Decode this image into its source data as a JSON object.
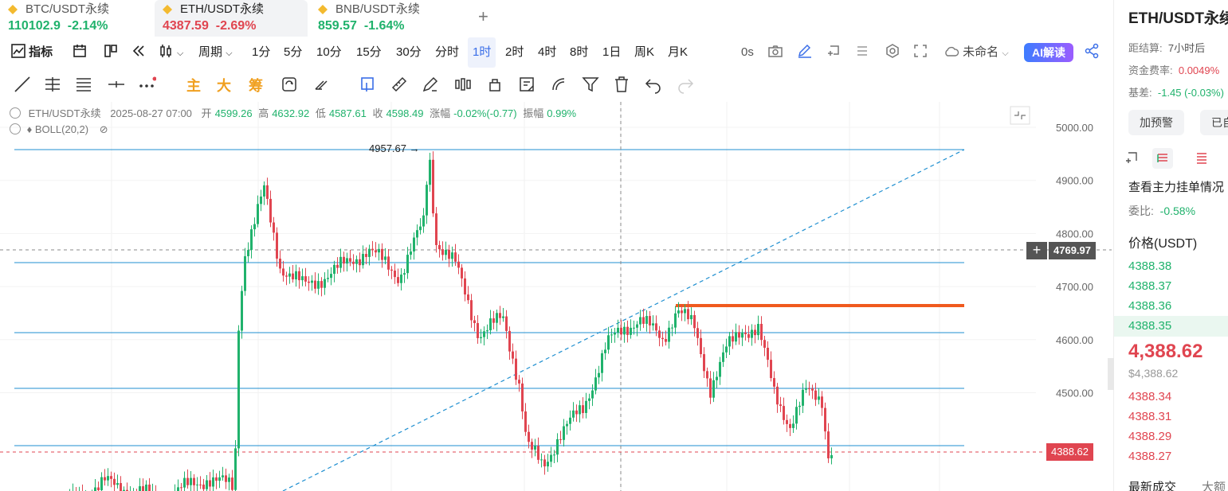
{
  "tabs": [
    {
      "pair": "BTC/USDT永续",
      "price": "110102.9",
      "change": "-2.14%",
      "dir": "up",
      "active": false
    },
    {
      "pair": "ETH/USDT永续",
      "price": "4387.59",
      "change": "-2.69%",
      "dir": "down",
      "active": true
    },
    {
      "pair": "BNB/USDT永续",
      "price": "859.57",
      "change": "-1.64%",
      "dir": "up",
      "active": false
    }
  ],
  "toolbar": {
    "indicators": "指标",
    "period": "周期",
    "intervals": [
      "1分",
      "5分",
      "10分",
      "15分",
      "30分",
      "分时",
      "1时",
      "2时",
      "4时",
      "8时",
      "1日",
      "周K",
      "月K"
    ],
    "active_interval": "1时",
    "countdown": "0s",
    "layout_name": "未命名",
    "ai_label": "AI解读"
  },
  "drawing": {
    "main": "主",
    "big": "大",
    "chip": "筹"
  },
  "ohlc": {
    "symbol": "ETH/USDT永续",
    "time": "2025-08-27 07:00",
    "open_label": "开",
    "open": "4599.26",
    "high_label": "高",
    "high": "4632.92",
    "low_label": "低",
    "low": "4587.61",
    "close_label": "收",
    "close": "4598.49",
    "change_label": "涨幅",
    "change": "-0.02%(-0.77)",
    "amp_label": "振幅",
    "amp": "0.99%"
  },
  "indicator": "BOLL(20,2)",
  "axis": {
    "ticks": [
      "5000.00",
      "4900.00",
      "4800.00",
      "4700.00",
      "4600.00",
      "4500.00"
    ],
    "crosshair_price": "4769.97",
    "last_price": "4388.62",
    "high_marker": "4957.67"
  },
  "sidebar": {
    "title": "ETH/USDT永续",
    "settle_label": "距结算:",
    "settle_value": "7小时后",
    "funding_label": "资金费率:",
    "funding_value": "0.0049%",
    "basis_label": "基差:",
    "basis_value": "-1.45 (-0.03%)",
    "alert_btn": "加预警",
    "alert_btn2": "已自",
    "depth_link": "查看主力挂单情况",
    "ratio_label": "委比:",
    "ratio_value": "-0.58%",
    "price_header": "价格(USDT)",
    "asks": [
      "4388.38",
      "4388.37",
      "4388.36",
      "4388.35"
    ],
    "mid_price": "4,388.62",
    "mid_usd": "$4,388.62",
    "bids": [
      "4388.34",
      "4388.31",
      "4388.29",
      "4388.27"
    ],
    "trades_label": "最新成交",
    "big_label": "大额"
  },
  "colors": {
    "up": "#20b26c",
    "down": "#e04550",
    "line": "#1f8fd0",
    "accent": "#3a6ee8",
    "orange": "#f05a1e"
  }
}
